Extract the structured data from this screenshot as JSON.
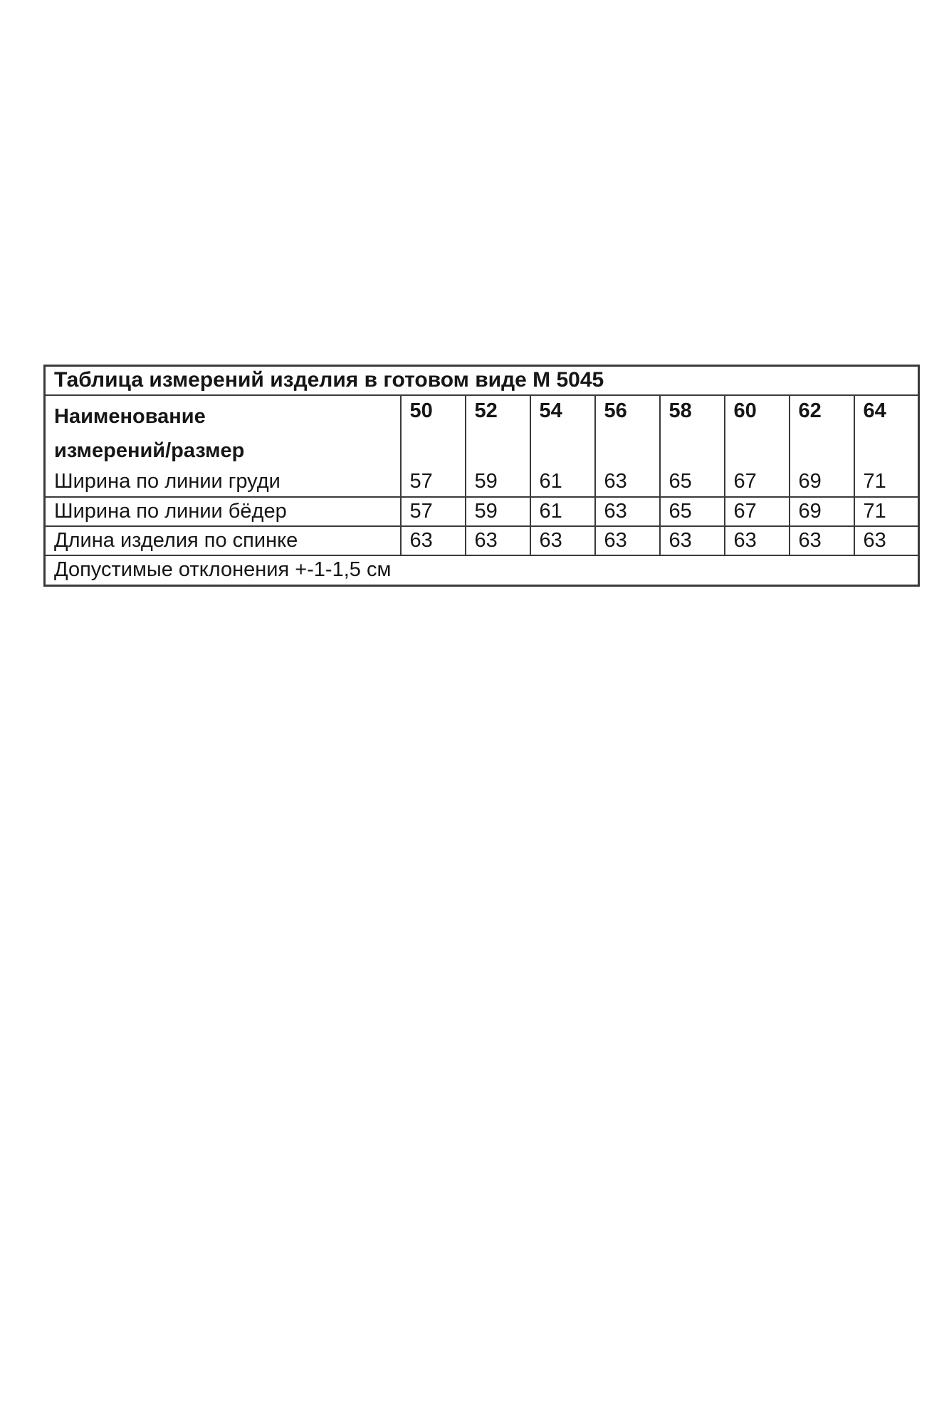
{
  "page": {
    "background_color": "#ffffff"
  },
  "size_table": {
    "title": "Таблица измерений изделия в готовом виде М 5045",
    "header": {
      "name_line1": "Наименование",
      "name_line2": "измерений/размер",
      "sizes": [
        "50",
        "52",
        "54",
        "56",
        "58",
        "60",
        "62",
        "64"
      ]
    },
    "rows": [
      {
        "label": "Ширина по линии груди",
        "values": [
          "57",
          "59",
          "61",
          "63",
          "65",
          "67",
          "69",
          "71"
        ]
      },
      {
        "label": "Ширина по линии бёдер",
        "values": [
          "57",
          "59",
          "61",
          "63",
          "65",
          "67",
          "69",
          "71"
        ]
      },
      {
        "label": "Длина изделия по спинке",
        "values": [
          "63",
          "63",
          "63",
          "63",
          "63",
          "63",
          "63",
          "63"
        ]
      }
    ],
    "footer_note": "Допустимые отклонения +-1-1,5 см",
    "border_color": "#3a3a3a",
    "text_color": "#161616"
  }
}
